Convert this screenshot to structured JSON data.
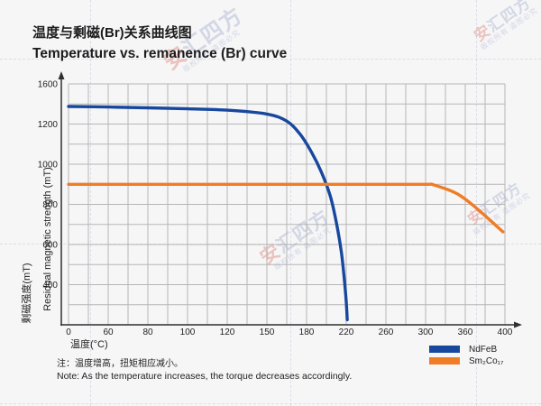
{
  "title": {
    "zh": "温度与剩磁(Br)关系曲线图",
    "en": "Temperature vs. remanence (Br) curve"
  },
  "note": {
    "zh": "注：温度增高，扭矩相应减小。",
    "en": "Note: As the temperature increases, the torque decreases accordingly."
  },
  "watermark": {
    "brand": "安汇四方",
    "brand_first": "安",
    "brand_rest": "汇四方",
    "sub": "版权所有 盗图必究"
  },
  "colors": {
    "ndfeb_blue": "#17489e",
    "smco_orange": "#ef7d25",
    "grid": "#b6b6b6",
    "axis": "#2f2f2f",
    "text": "#1f1f1f"
  },
  "chart_data": {
    "type": "line",
    "title": "Temperature vs. remanence (Br) curve",
    "title_zh": "温度与剩磁(Br)关系曲线图",
    "grid": true,
    "legend_position": "bottom-right",
    "x_axis": {
      "label_zh": "温度(°C)",
      "tick_labels": [
        0,
        60,
        80,
        100,
        120,
        150,
        180,
        220,
        260,
        300,
        360,
        400
      ],
      "note": "tick values non-uniform but equally spaced"
    },
    "y_axis": {
      "label_zh": "剩磁强度(mT)",
      "label_en": "Residual magnetic strength (mT)",
      "tick_labels": [
        0,
        400,
        600,
        800,
        1000,
        1200,
        1600
      ],
      "note": "tick values non-uniform but equally spaced; 0 label shared with x origin"
    },
    "series": [
      {
        "name": "NdFeB",
        "label": "NdFeB",
        "color": "#17489e",
        "points": [
          [
            0,
            1375
          ],
          [
            60,
            1370
          ],
          [
            80,
            1362
          ],
          [
            100,
            1352
          ],
          [
            120,
            1338
          ],
          [
            150,
            1300
          ],
          [
            165,
            1230
          ],
          [
            175,
            1150
          ],
          [
            185,
            1060
          ],
          [
            195,
            960
          ],
          [
            204,
            840
          ],
          [
            210,
            710
          ],
          [
            215,
            565
          ],
          [
            218,
            430
          ],
          [
            220,
            230
          ],
          [
            221,
            50
          ]
        ]
      },
      {
        "name": "Sm2Co17",
        "label": "Sm₂Co₁₇",
        "color": "#ef7d25",
        "points": [
          [
            0,
            900
          ],
          [
            60,
            900
          ],
          [
            120,
            900
          ],
          [
            180,
            900
          ],
          [
            240,
            900
          ],
          [
            300,
            900
          ],
          [
            312,
            897
          ],
          [
            348,
            852
          ],
          [
            372,
            778
          ],
          [
            398,
            663
          ]
        ]
      }
    ]
  }
}
